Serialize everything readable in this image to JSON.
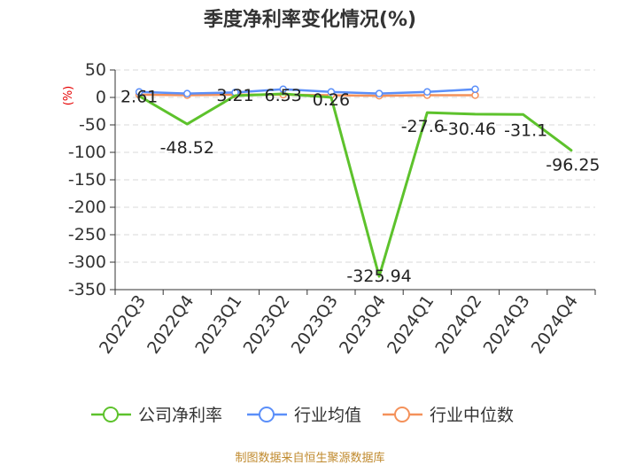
{
  "colors": {
    "company": "#5dc22c",
    "industry_avg": "#5b8ff9",
    "industry_median": "#f4915a"
  },
  "source_text": "制图数据来自恒生聚源数据库",
  "chart_data": {
    "type": "line",
    "title": "季度净利率变化情况(%)",
    "ylabel": "(%)",
    "xlabel": "",
    "ylim": [
      -350,
      50
    ],
    "yticks": [
      50,
      0,
      -50,
      -100,
      -150,
      -200,
      -250,
      -300,
      -350
    ],
    "categories": [
      "2022Q3",
      "2022Q4",
      "2023Q1",
      "2023Q2",
      "2023Q3",
      "2023Q4",
      "2024Q1",
      "2024Q2",
      "2024Q3",
      "2024Q4"
    ],
    "grid": true,
    "legend_position": "bottom",
    "series": [
      {
        "name": "公司净利率",
        "color_key": "company",
        "values": [
          2.61,
          -48.52,
          3.21,
          6.53,
          0.26,
          -325.94,
          -27.6,
          -30.46,
          -31.1,
          -96.25
        ],
        "labels": [
          "2.61",
          "-48.52",
          "3.21",
          "6.53",
          "0.26",
          "-325.94",
          "-27.6",
          "-30.46",
          "-31.1",
          "-96.25"
        ],
        "markers": false
      },
      {
        "name": "行业均值",
        "color_key": "industry_avg",
        "values": [
          10,
          7,
          9,
          15,
          10,
          7,
          10,
          15,
          null,
          null
        ],
        "markers": true
      },
      {
        "name": "行业中位数",
        "color_key": "industry_median",
        "values": [
          5,
          4,
          5,
          5,
          4,
          3,
          4,
          4,
          null,
          null
        ],
        "markers": true
      }
    ]
  }
}
